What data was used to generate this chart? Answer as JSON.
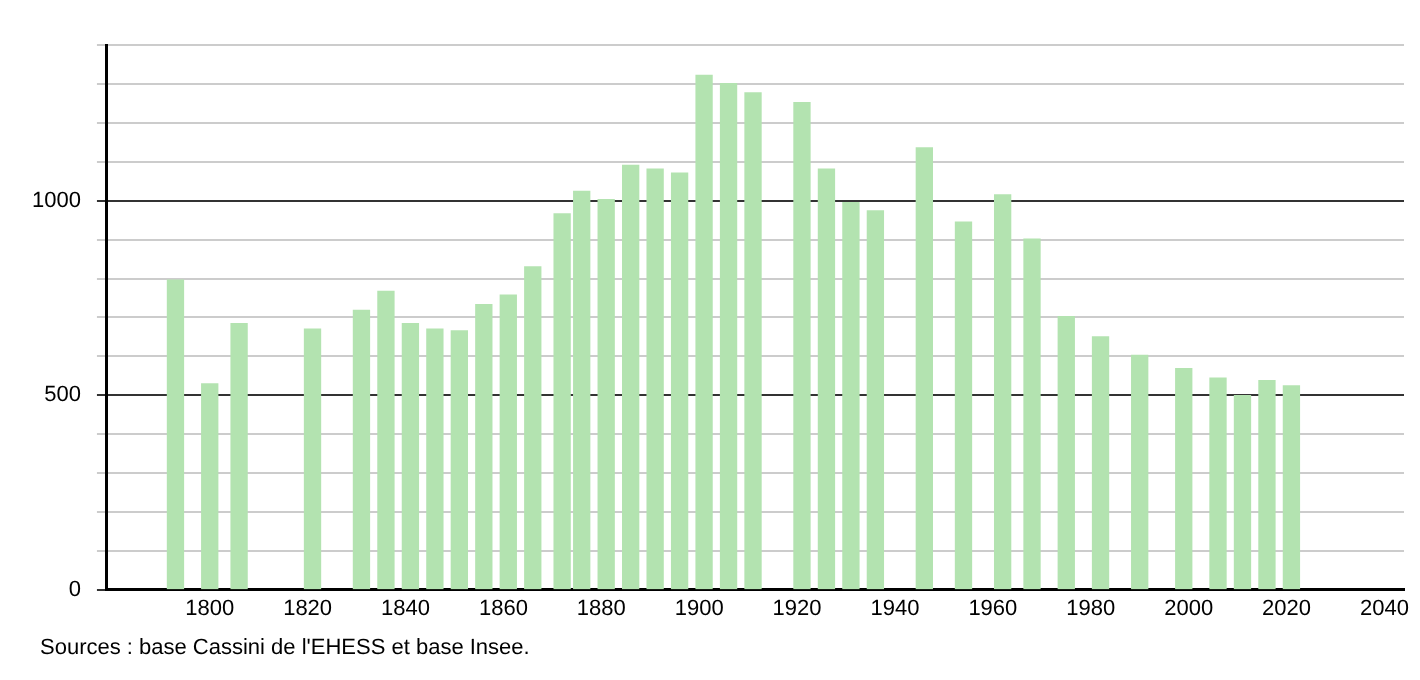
{
  "chart_data": {
    "type": "bar",
    "x": [
      1793,
      1800,
      1806,
      1821,
      1831,
      1836,
      1841,
      1846,
      1851,
      1856,
      1861,
      1866,
      1872,
      1876,
      1881,
      1886,
      1891,
      1896,
      1901,
      1906,
      1911,
      1921,
      1926,
      1931,
      1936,
      1946,
      1954,
      1962,
      1968,
      1975,
      1982,
      1990,
      1999,
      2006,
      2011,
      2016,
      2021
    ],
    "values": [
      796,
      529,
      684,
      670,
      718,
      767,
      684,
      670,
      665,
      733,
      757,
      830,
      966,
      1024,
      1003,
      1091,
      1081,
      1071,
      1322,
      1301,
      1277,
      1252,
      1081,
      995,
      974,
      1136,
      945,
      1015,
      901,
      702,
      650,
      602,
      568,
      544,
      499,
      537,
      524
    ],
    "color": "#b3e3b0",
    "xlim": [
      1779,
      2044
    ],
    "xticks": [
      1800,
      1820,
      1840,
      1860,
      1880,
      1900,
      1920,
      1940,
      1960,
      1980,
      2000,
      2020,
      2040
    ],
    "ylim": [
      0,
      1400
    ],
    "yticks": [
      0,
      {
        "value": 100,
        "label": null
      },
      {
        "value": 200,
        "label": null
      },
      {
        "value": 300,
        "label": null
      },
      {
        "value": 400,
        "label": null
      },
      500,
      {
        "value": 600,
        "label": null
      },
      {
        "value": 700,
        "label": null
      },
      {
        "value": 800,
        "label": null
      },
      {
        "value": 900,
        "label": null
      },
      1000,
      {
        "value": 1100,
        "label": null
      },
      {
        "value": 1200,
        "label": null
      },
      {
        "value": 1300,
        "label": null
      },
      {
        "value": 1400,
        "label": null
      }
    ],
    "grid": "y",
    "legend": false,
    "annotations": [
      "Sources : base Cassini de l'EHESS et base Insee."
    ]
  }
}
